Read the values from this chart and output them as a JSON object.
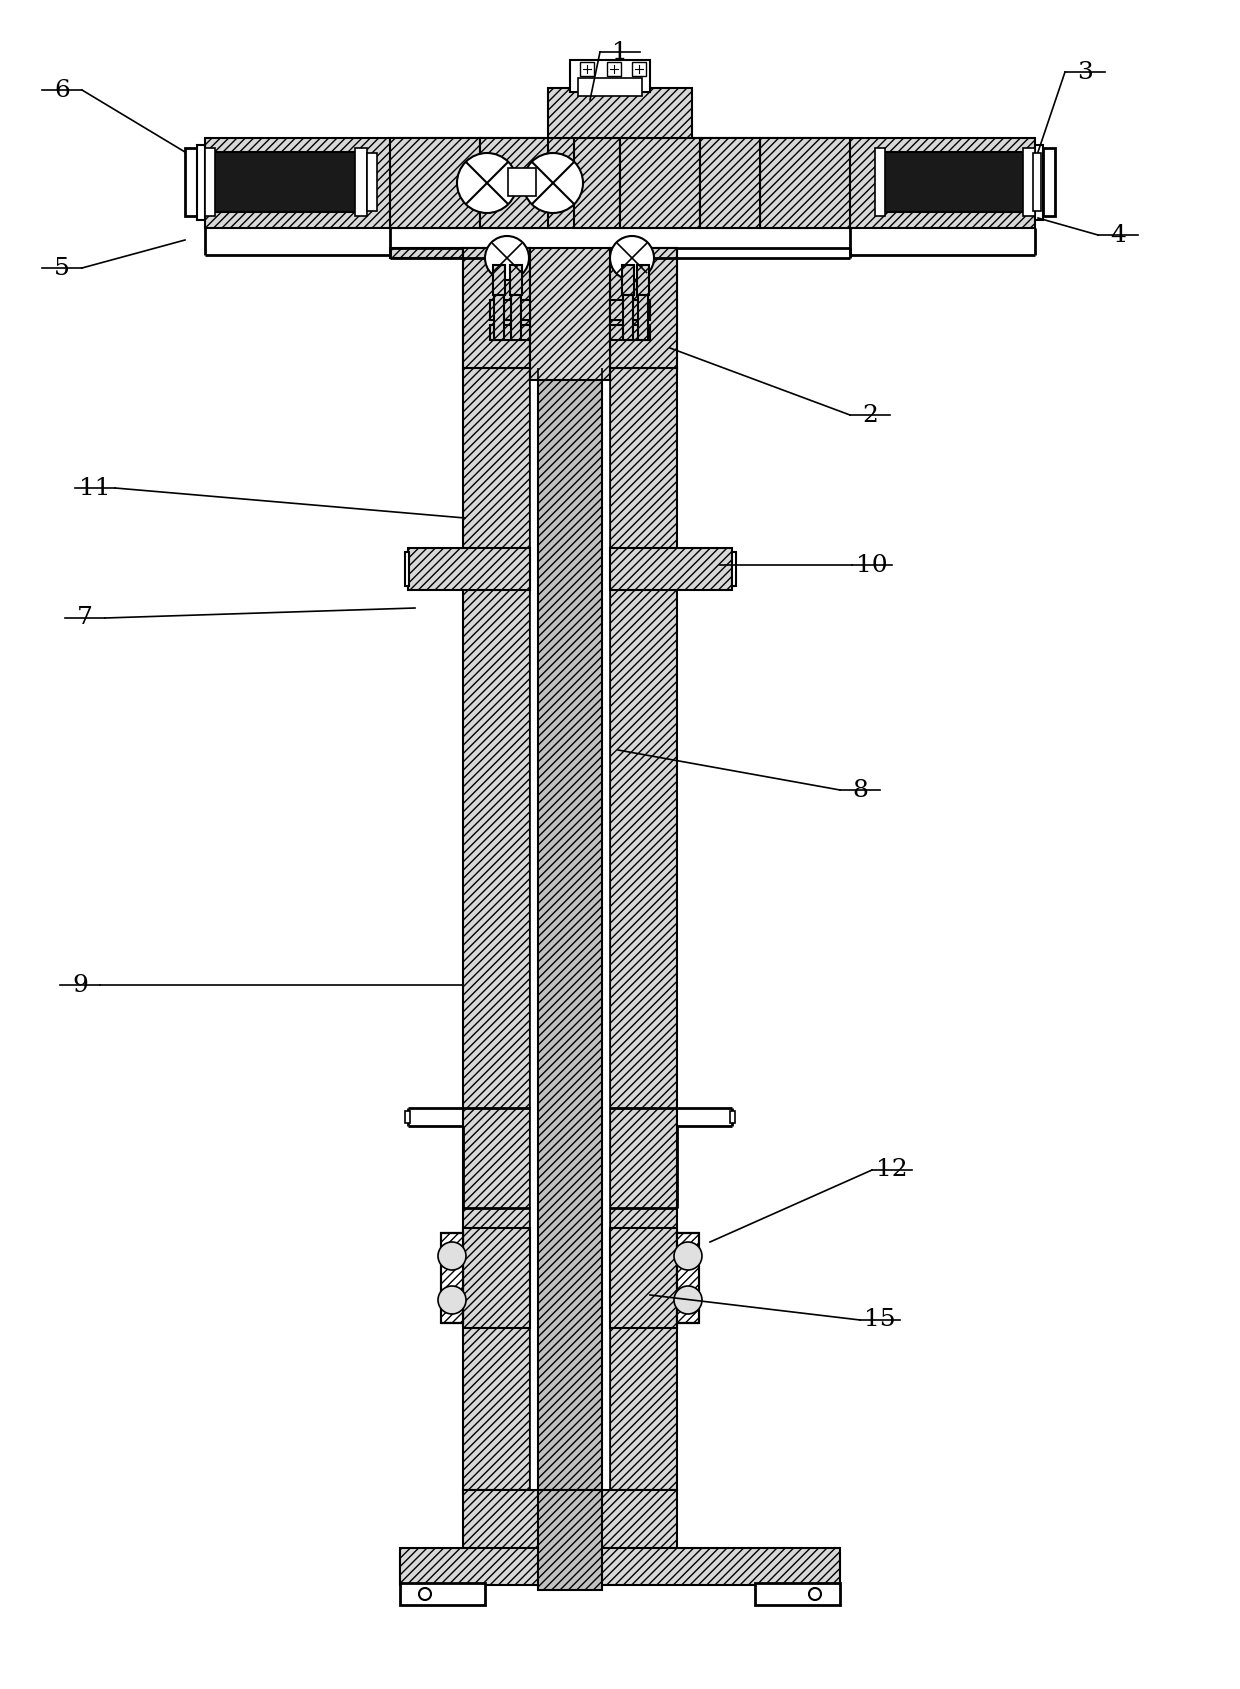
{
  "background_color": "#ffffff",
  "line_color": "#000000",
  "figsize": [
    12.4,
    16.89
  ],
  "dpi": 100,
  "labels": {
    "1": [
      620,
      52,
      590,
      100
    ],
    "6": [
      62,
      90,
      185,
      152
    ],
    "3": [
      1085,
      72,
      1038,
      152
    ],
    "5": [
      62,
      268,
      185,
      240
    ],
    "4": [
      1118,
      235,
      1038,
      218
    ],
    "2": [
      870,
      415,
      670,
      348
    ],
    "11": [
      95,
      488,
      465,
      518
    ],
    "7": [
      85,
      618,
      415,
      608
    ],
    "10": [
      872,
      565,
      720,
      565
    ],
    "8": [
      860,
      790,
      618,
      750
    ],
    "9": [
      80,
      985,
      463,
      985
    ],
    "12": [
      892,
      1170,
      710,
      1242
    ],
    "15": [
      880,
      1320,
      650,
      1295
    ]
  }
}
